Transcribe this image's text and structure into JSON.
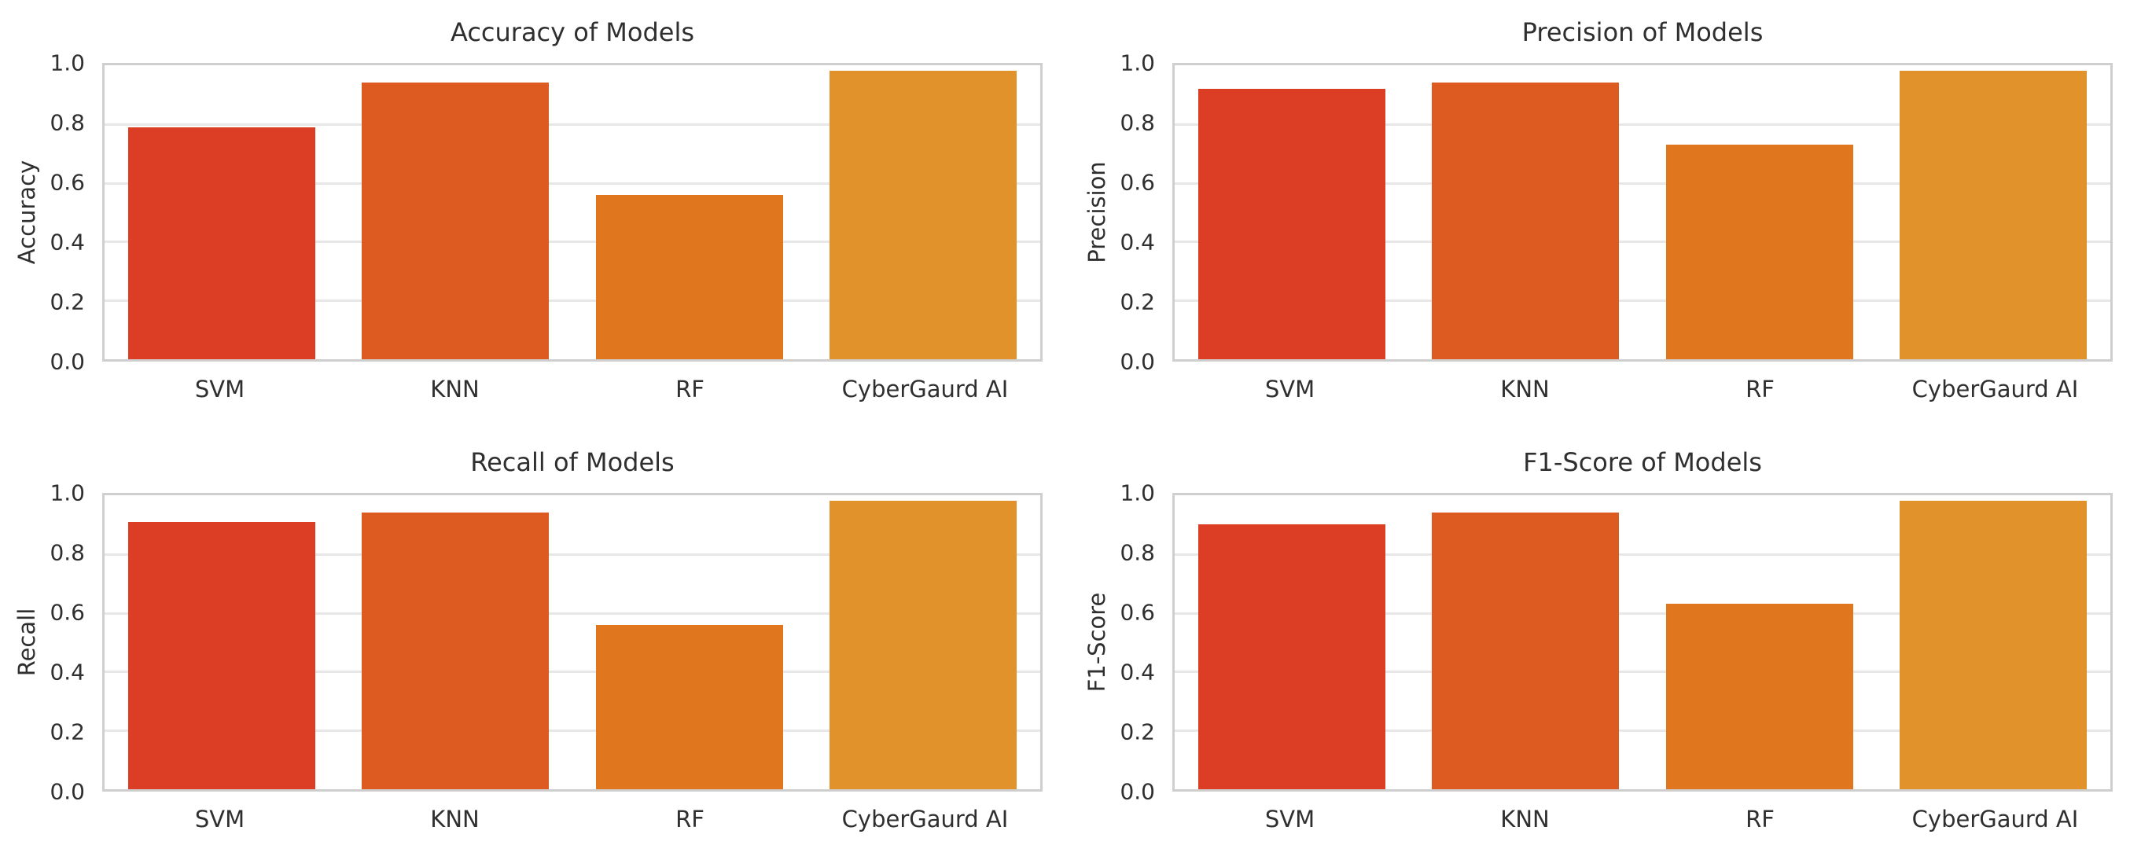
{
  "figure": {
    "background": "#ffffff",
    "text_color": "#2f2f2f",
    "grid_color": "#e7e7e7",
    "spine_color": "#cfcfcf",
    "layout": "2x2 grid of bar charts",
    "palette_note": "orange gradient per model"
  },
  "chart_data": [
    {
      "type": "bar",
      "title": "Accuracy of Models",
      "xlabel": "",
      "ylabel": "Accuracy",
      "categories": [
        "SVM",
        "KNN",
        "RF",
        "CyberGaurd AI"
      ],
      "values": [
        0.79,
        0.94,
        0.56,
        0.98
      ],
      "bar_colors": [
        "#dc3e25",
        "#dd5a21",
        "#e0771f",
        "#e2922a"
      ],
      "ylim": [
        0.0,
        1.0
      ],
      "ytick_labels": [
        "0.0",
        "0.2",
        "0.4",
        "0.6",
        "0.8",
        "1.0"
      ],
      "grid": "horizontal",
      "legend": "none"
    },
    {
      "type": "bar",
      "title": "Precision of Models",
      "xlabel": "",
      "ylabel": "Precision",
      "categories": [
        "SVM",
        "KNN",
        "RF",
        "CyberGaurd AI"
      ],
      "values": [
        0.92,
        0.94,
        0.73,
        0.98
      ],
      "bar_colors": [
        "#dc3e25",
        "#dd5a21",
        "#e0771f",
        "#e2922a"
      ],
      "ylim": [
        0.0,
        1.0
      ],
      "ytick_labels": [
        "0.0",
        "0.2",
        "0.4",
        "0.6",
        "0.8",
        "1.0"
      ],
      "grid": "horizontal",
      "legend": "none"
    },
    {
      "type": "bar",
      "title": "Recall of Models",
      "xlabel": "",
      "ylabel": "Recall",
      "categories": [
        "SVM",
        "KNN",
        "RF",
        "CyberGaurd AI"
      ],
      "values": [
        0.91,
        0.94,
        0.56,
        0.98
      ],
      "bar_colors": [
        "#dc3e25",
        "#dd5a21",
        "#e0771f",
        "#e2922a"
      ],
      "ylim": [
        0.0,
        1.0
      ],
      "ytick_labels": [
        "0.0",
        "0.2",
        "0.4",
        "0.6",
        "0.8",
        "1.0"
      ],
      "grid": "horizontal",
      "legend": "none"
    },
    {
      "type": "bar",
      "title": "F1-Score of Models",
      "xlabel": "",
      "ylabel": "F1-Score",
      "categories": [
        "SVM",
        "KNN",
        "RF",
        "CyberGaurd AI"
      ],
      "values": [
        0.9,
        0.94,
        0.63,
        0.98
      ],
      "bar_colors": [
        "#dc3e25",
        "#dd5a21",
        "#e0771f",
        "#e2922a"
      ],
      "ylim": [
        0.0,
        1.0
      ],
      "ytick_labels": [
        "0.0",
        "0.2",
        "0.4",
        "0.6",
        "0.8",
        "1.0"
      ],
      "grid": "horizontal",
      "legend": "none"
    }
  ]
}
